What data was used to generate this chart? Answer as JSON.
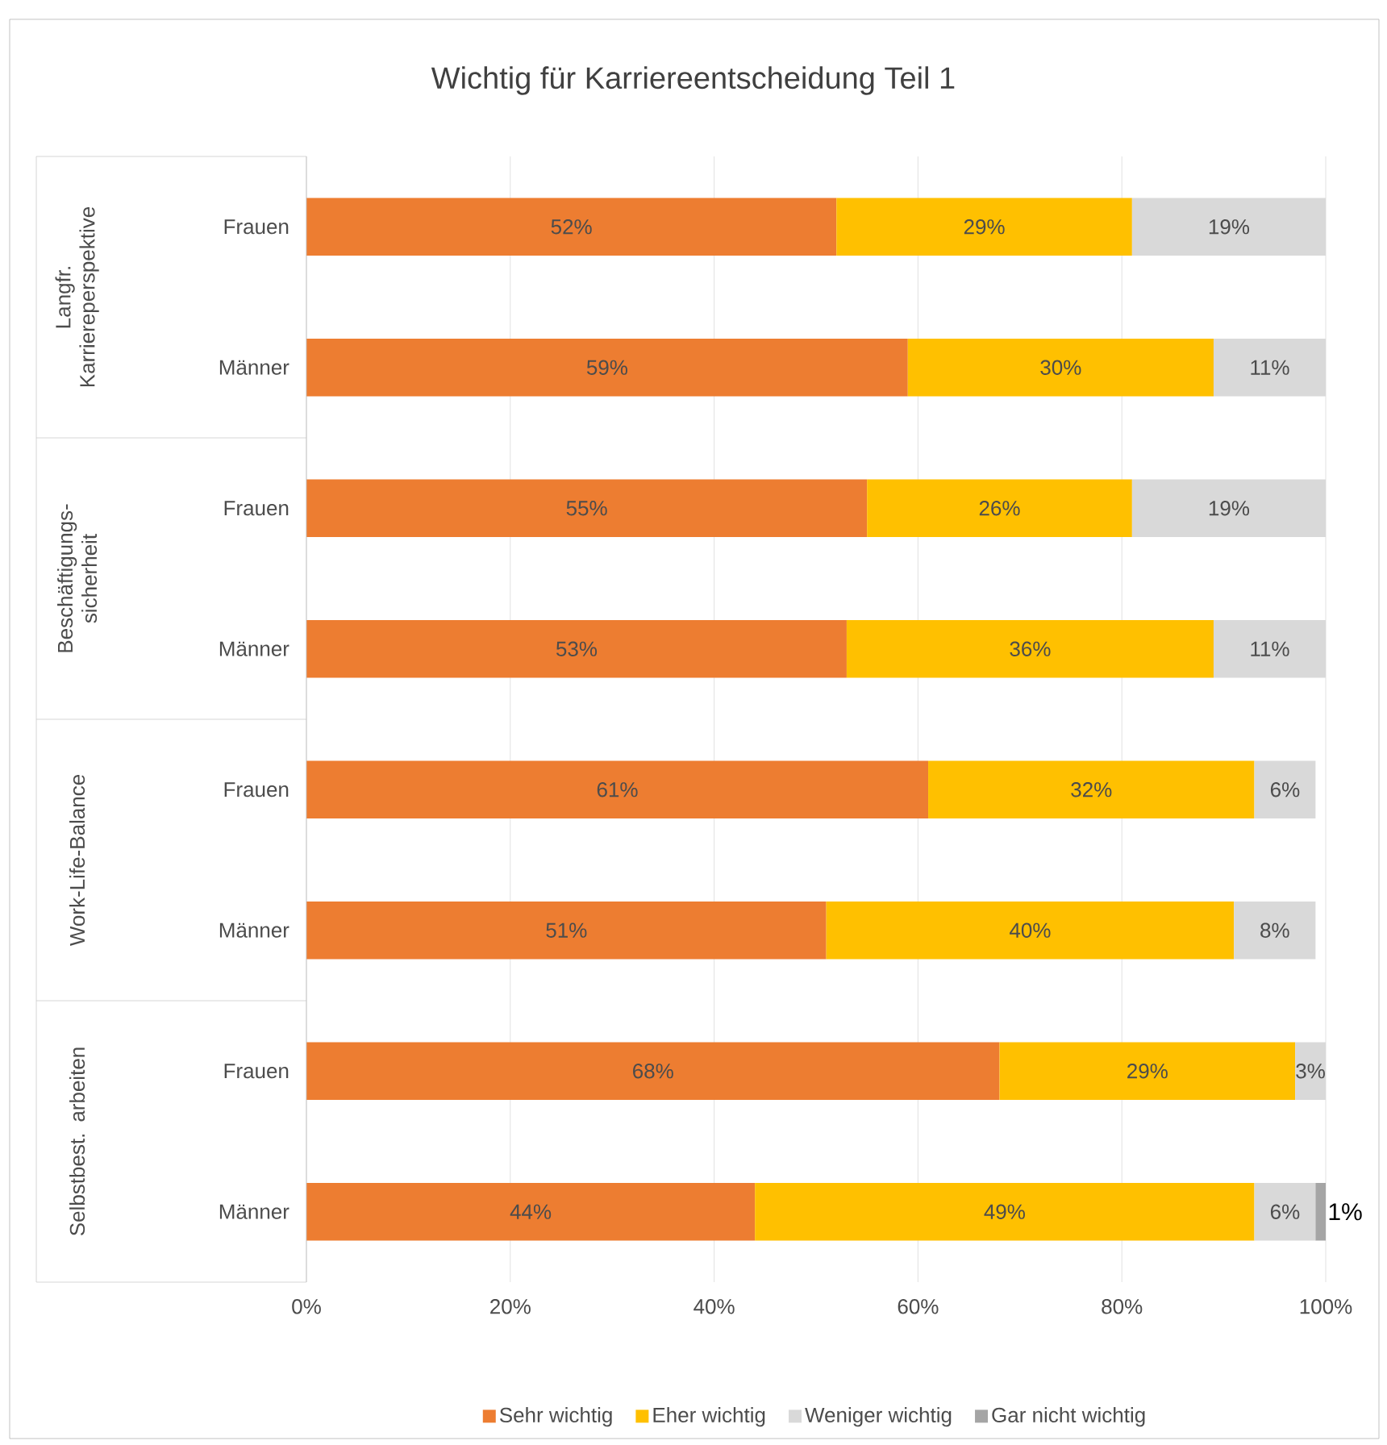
{
  "chart_data": {
    "type": "bar",
    "orientation": "horizontal",
    "stacked": true,
    "title": "Wichtig für Karriereentscheidung Teil 1",
    "categories": [
      "Frauen",
      "Männer",
      "Frauen",
      "Männer",
      "Frauen",
      "Männer",
      "Frauen",
      "Männer"
    ],
    "annotations": [
      "Langfr. Karriereperspektive",
      "Beschäftigungs-sicherheit",
      "Work-Life-Balance",
      "Selbstbest. arbeiten"
    ],
    "series": [
      {
        "name": "Sehr wichtig",
        "color": "#ed7d31",
        "values": [
          52,
          59,
          55,
          53,
          61,
          51,
          68,
          44
        ],
        "value_labels": [
          "52%",
          "59%",
          "55%",
          "53%",
          "61%",
          "51%",
          "68%",
          "44%"
        ]
      },
      {
        "name": "Eher wichtig",
        "color": "#ffc000",
        "values": [
          29,
          30,
          26,
          36,
          32,
          40,
          29,
          49
        ],
        "value_labels": [
          "29%",
          "30%",
          "26%",
          "36%",
          "32%",
          "40%",
          "29%",
          "49%"
        ]
      },
      {
        "name": "Weniger wichtig",
        "color": "#d9d9d9",
        "values": [
          19,
          11,
          19,
          11,
          6,
          8,
          3,
          6
        ],
        "value_labels": [
          "19%",
          "11%",
          "19%",
          "11%",
          "6%",
          "8%",
          "3%",
          "6%"
        ]
      },
      {
        "name": "Gar nicht wichtig",
        "color": "#a5a5a5",
        "values": [
          null,
          null,
          null,
          null,
          null,
          null,
          null,
          1
        ],
        "value_labels": [
          null,
          null,
          null,
          null,
          null,
          null,
          null,
          "1%"
        ]
      }
    ],
    "xlim": [
      0,
      100
    ],
    "xticks": [
      {
        "value": 0,
        "label": "0%"
      },
      {
        "value": 20,
        "label": "20%"
      },
      {
        "value": 40,
        "label": "40%"
      },
      {
        "value": 60,
        "label": "60%"
      },
      {
        "value": 80,
        "label": "80%"
      },
      {
        "value": 100,
        "label": "100%"
      }
    ],
    "grid": "x",
    "legend": "bottom"
  }
}
